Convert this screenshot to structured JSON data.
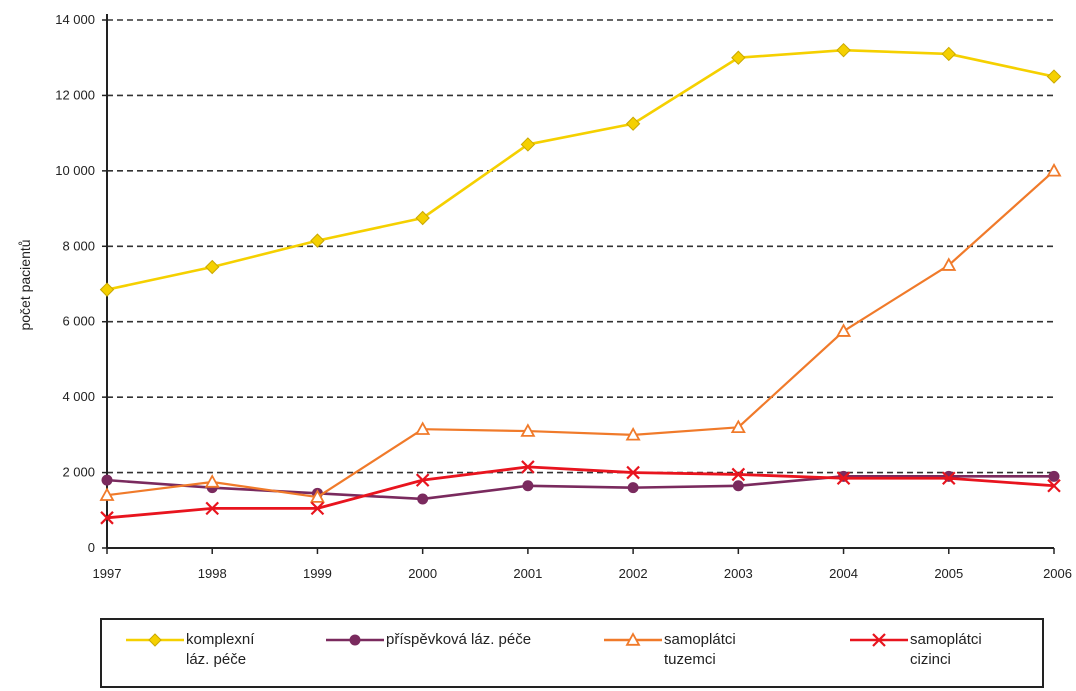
{
  "chart_data": {
    "type": "line",
    "ylabel": "počet pacientů",
    "ylim": [
      0,
      14000
    ],
    "y_ticks": [
      0,
      2000,
      4000,
      6000,
      8000,
      10000,
      12000,
      14000
    ],
    "y_tick_labels": [
      "0",
      "2 000",
      "4 000",
      "6 000",
      "8 000",
      "10 000",
      "12 000",
      "14 000"
    ],
    "categories": [
      "1997",
      "1998",
      "1999",
      "2000",
      "2001",
      "2002",
      "2003",
      "2004",
      "2005",
      "2006"
    ],
    "grid": "horizontal dashed",
    "legend_position": "bottom",
    "series": [
      {
        "name": "komplexní\nláz. péče",
        "color": "#F5D000",
        "marker": "diamond",
        "values": [
          6850,
          7450,
          8150,
          8750,
          10700,
          11250,
          13000,
          13200,
          13100,
          12500
        ]
      },
      {
        "name": "příspěvková láz. péče",
        "color": "#7A2A5E",
        "marker": "circle",
        "values": [
          1800,
          1600,
          1450,
          1300,
          1650,
          1600,
          1650,
          1900,
          1900,
          1900
        ]
      },
      {
        "name": "samoplátci\ntuzemci",
        "color": "#F07A2A",
        "marker": "triangle",
        "values": [
          1400,
          1750,
          1350,
          3150,
          3100,
          3000,
          3200,
          5750,
          7500,
          10000
        ]
      },
      {
        "name": "samoplátci\ncizinci",
        "color": "#E8141E",
        "marker": "x",
        "values": [
          800,
          1050,
          1050,
          1800,
          2150,
          2000,
          1950,
          1850,
          1850,
          1650
        ]
      }
    ]
  }
}
